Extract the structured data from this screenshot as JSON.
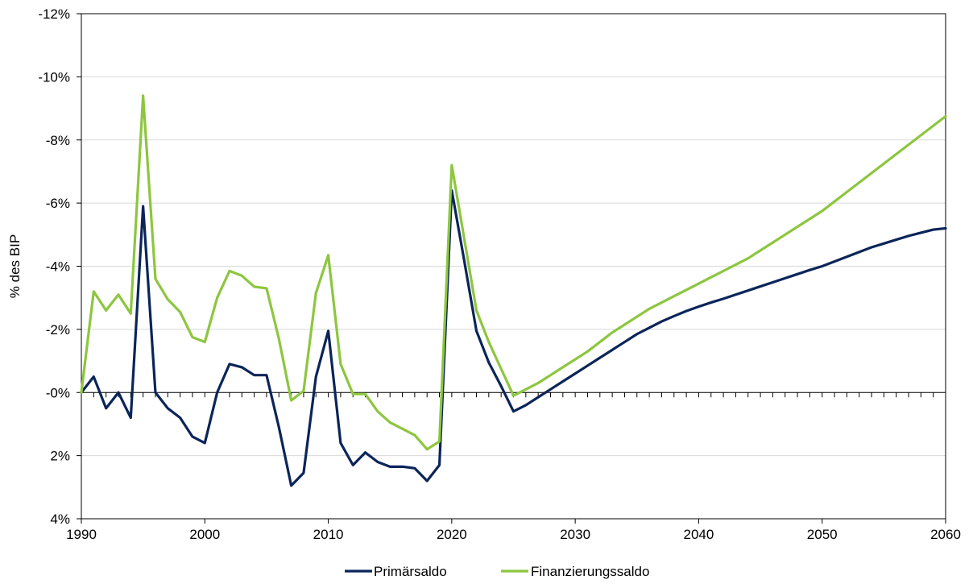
{
  "chart_data": {
    "type": "line",
    "title": "",
    "xlabel": "",
    "ylabel": "% des BIP",
    "xlim": [
      1990,
      2060
    ],
    "ylim": [
      4,
      -12
    ],
    "y_axis_reversed": true,
    "grid": "horizontal",
    "legend_position": "bottom",
    "x_ticks": [
      1990,
      2000,
      2010,
      2020,
      2030,
      2040,
      2050,
      2060
    ],
    "x_tick_labels": [
      "1990",
      "2000",
      "2010",
      "2020",
      "2030",
      "2040",
      "2050",
      "2060"
    ],
    "y_ticks": [
      -12,
      -10,
      -8,
      -6,
      -4,
      -2,
      0,
      2,
      4
    ],
    "y_tick_labels": [
      "-12%",
      "-10%",
      "-8%",
      "-6%",
      "-4%",
      "-2%",
      "-0%",
      "2%",
      "4%"
    ],
    "x": [
      1990,
      1991,
      1992,
      1993,
      1994,
      1995,
      1996,
      1997,
      1998,
      1999,
      2000,
      2001,
      2002,
      2003,
      2004,
      2005,
      2006,
      2007,
      2008,
      2009,
      2010,
      2011,
      2012,
      2013,
      2014,
      2015,
      2016,
      2017,
      2018,
      2019,
      2020,
      2021,
      2022,
      2023,
      2024,
      2025,
      2026,
      2027,
      2028,
      2029,
      2030,
      2031,
      2032,
      2033,
      2034,
      2035,
      2036,
      2037,
      2038,
      2039,
      2040,
      2041,
      2042,
      2043,
      2044,
      2045,
      2046,
      2047,
      2048,
      2049,
      2050,
      2051,
      2052,
      2053,
      2054,
      2055,
      2056,
      2057,
      2058,
      2059,
      2060
    ],
    "series": [
      {
        "name": "Primärsaldo",
        "color": "#0b2559",
        "values": [
          0,
          -0.5,
          0.5,
          0,
          0.8,
          -5.9,
          0,
          0.5,
          0.8,
          1.4,
          1.6,
          0,
          -0.9,
          -0.8,
          -0.55,
          -0.55,
          1.1,
          2.95,
          2.55,
          -0.5,
          -1.95,
          1.6,
          2.3,
          1.9,
          2.2,
          2.35,
          2.35,
          2.4,
          2.8,
          2.3,
          -6.4,
          -4.2,
          -1.95,
          -0.95,
          -0.2,
          0.6,
          0.4,
          0.15,
          -0.1,
          -0.35,
          -0.6,
          -0.85,
          -1.1,
          -1.35,
          -1.6,
          -1.85,
          -2.05,
          -2.25,
          -2.42,
          -2.58,
          -2.72,
          -2.85,
          -2.97,
          -3.1,
          -3.23,
          -3.36,
          -3.49,
          -3.62,
          -3.75,
          -3.88,
          -4,
          -4.15,
          -4.3,
          -4.45,
          -4.6,
          -4.72,
          -4.84,
          -4.96,
          -5.06,
          -5.16,
          -5.2
        ]
      },
      {
        "name": "Finanzierungssaldo",
        "color": "#8dc63f",
        "values": [
          0,
          -3.2,
          -2.6,
          -3.1,
          -2.5,
          -9.4,
          -3.6,
          -2.95,
          -2.55,
          -1.75,
          -1.6,
          -3,
          -3.85,
          -3.7,
          -3.35,
          -3.3,
          -1.7,
          0.25,
          -0.05,
          -3.15,
          -4.35,
          -0.9,
          0.05,
          0.05,
          0.6,
          0.95,
          1.15,
          1.35,
          1.8,
          1.55,
          -7.2,
          -4.9,
          -2.6,
          -1.6,
          -0.75,
          0.1,
          -0.1,
          -0.3,
          -0.55,
          -0.8,
          -1.05,
          -1.3,
          -1.6,
          -1.9,
          -2.15,
          -2.4,
          -2.65,
          -2.85,
          -3.05,
          -3.25,
          -3.45,
          -3.65,
          -3.85,
          -4.05,
          -4.25,
          -4.5,
          -4.75,
          -5,
          -5.25,
          -5.5,
          -5.75,
          -6.05,
          -6.35,
          -6.65,
          -6.95,
          -7.25,
          -7.55,
          -7.85,
          -8.15,
          -8.45,
          -8.75
        ]
      }
    ]
  }
}
